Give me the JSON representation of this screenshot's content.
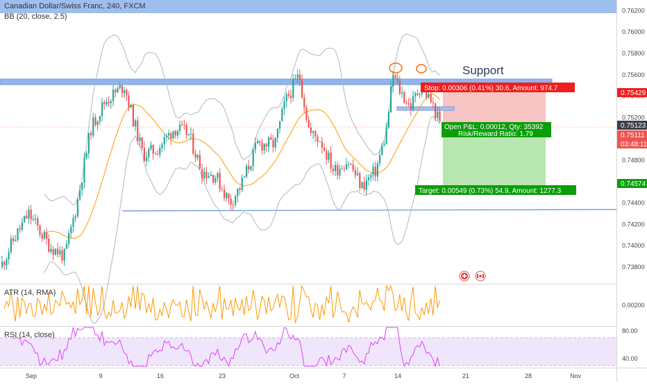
{
  "header": {
    "symbol_line": "Canadian Dollar/Swiss Franc, 240, FXCM",
    "bb_label": "BB (20, close, 2.5)",
    "atr_label": "ATR (14, RMA)",
    "rsi_label": "RSI (14, close)"
  },
  "annotations": {
    "support_text": "Support",
    "stop_text": "Stop: 0.00306 (0.41%) 30.6, Amount: 974.7",
    "pnl_text": "Open P&L: 0.00012, Qty: 35392",
    "rr_text": "Risk/Reward Ratio: 1.79",
    "target_text": "Target: 0.00549 (0.73%) 54.9, Amount: 1277.3"
  },
  "price_badges": {
    "stop": "0.75429",
    "current": "0.75123",
    "bid": "0.75111",
    "countdown": "03:48:11",
    "target": "0.74574"
  },
  "colors": {
    "up": "#26a69a",
    "down": "#ef5350",
    "bb_band": "#b2b5be",
    "bb_basis": "#ff9800",
    "support_zone": "#90b4ec",
    "stop_zone": "#f8c4c4",
    "target_zone": "#b8e6b0",
    "stop_badge": "#f21e1e",
    "target_badge": "#0b9e0b",
    "atr_line": "#ff9800",
    "rsi_line": "#e040fb",
    "rsi_band": "#f0e6fb"
  },
  "chart_data": [
    {
      "type": "candlestick",
      "title": "Canadian Dollar/Swiss Franc, 240, FXCM",
      "y_axis_ticks": [
        "0.76200",
        "0.76000",
        "0.75800",
        "0.75600",
        "0.75400",
        "0.75200",
        "0.75000",
        "0.74800",
        "0.74600",
        "0.74400",
        "0.74200",
        "0.74000",
        "0.73800"
      ],
      "ylim": [
        0.7365,
        0.763
      ],
      "x_axis_ticks": [
        "Sep",
        "9",
        "16",
        "23",
        "Oct",
        "7",
        "14",
        "21",
        "28",
        "Nov"
      ],
      "series": [
        {
          "name": "BB (20, close, 2.5)",
          "x": [
            "Sep",
            "9",
            "16",
            "23",
            "Oct",
            "7",
            "14",
            "21"
          ],
          "close": [
            0.7405,
            0.7525,
            0.7495,
            0.744,
            0.7525,
            0.747,
            0.7555,
            0.7512
          ],
          "basis": [
            0.7395,
            0.75,
            0.75,
            0.746,
            0.751,
            0.748,
            0.7535,
            0.753
          ]
        }
      ],
      "support_zone": [
        0.7554,
        0.756
      ],
      "support_line_2": 0.7433,
      "position": {
        "side": "long",
        "entry": 0.7511,
        "stop": 0.75429,
        "target": 0.74574
      },
      "current_price": 0.75123
    },
    {
      "type": "line",
      "title": "ATR (14, RMA)",
      "y_axis_ticks": [
        "0.00200"
      ],
      "ylim": [
        0.0012,
        0.003
      ],
      "series": [
        {
          "name": "ATR (14, RMA)",
          "values": [
            0.0021,
            0.0024,
            0.002,
            0.0022,
            0.0018,
            0.0026,
            0.0022,
            0.0023,
            0.0021
          ]
        }
      ]
    },
    {
      "type": "line",
      "title": "RSI (14, close)",
      "y_axis_ticks": [
        "80.00",
        "40.00"
      ],
      "ylim": [
        28,
        90
      ],
      "series": [
        {
          "name": "RSI (14, close)",
          "values": [
            48,
            55,
            62,
            70,
            55,
            45,
            50,
            62,
            48,
            55,
            70,
            55,
            45
          ]
        }
      ]
    }
  ]
}
